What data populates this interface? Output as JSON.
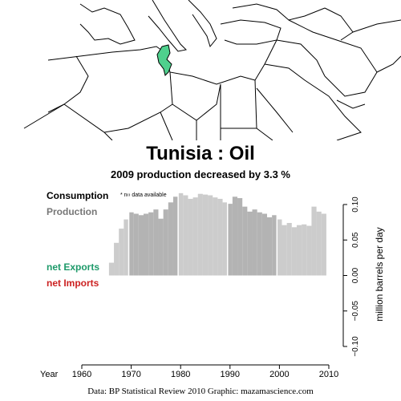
{
  "header": {
    "title": "Tunisia :  Oil",
    "subtitle": "2009 production decreased by 3.3 %"
  },
  "legend": {
    "consumption": "Consumption",
    "production": "Production",
    "net_exports": "net Exports",
    "net_imports": "net Imports",
    "no_data_note": "* no data available"
  },
  "colors": {
    "consumption": "#000000",
    "production": "#777777",
    "net_exports": "#1e9a6a",
    "net_imports": "#cc2222",
    "bar_light": "#cccccc",
    "bar_dark": "#b3b3b3",
    "highlight_country": "#4fd08d"
  },
  "footer": {
    "source": "Data: BP Statistical Review 2010    Graphic: mazamascience.com"
  },
  "map": {
    "highlight_country": "Tunisia"
  },
  "chart_data": {
    "type": "bar",
    "title": "Tunisia :  Oil",
    "subtitle": "2009 production decreased by 3.3 %",
    "xlabel": "Year",
    "ylabel": "million barrels per day",
    "xlim": [
      1960,
      2010
    ],
    "ylim": [
      -0.1,
      0.1
    ],
    "x_ticks": [
      1960,
      1970,
      1980,
      1990,
      2000,
      2010
    ],
    "y_ticks": [
      -0.1,
      -0.05,
      0.0,
      0.05,
      0.1
    ],
    "y_tick_labels": [
      "−0.10",
      "−0.05",
      "0.00",
      "0.05",
      "0.10"
    ],
    "consumption_available": false,
    "series": [
      {
        "name": "Production",
        "x": [
          1966,
          1967,
          1968,
          1969,
          1970,
          1971,
          1972,
          1973,
          1974,
          1975,
          1976,
          1977,
          1978,
          1979,
          1980,
          1981,
          1982,
          1983,
          1984,
          1985,
          1986,
          1987,
          1988,
          1989,
          1990,
          1991,
          1992,
          1993,
          1994,
          1995,
          1996,
          1997,
          1998,
          1999,
          2000,
          2001,
          2002,
          2003,
          2004,
          2005,
          2006,
          2007,
          2008,
          2009
        ],
        "values": [
          0.018,
          0.046,
          0.066,
          0.079,
          0.089,
          0.087,
          0.085,
          0.087,
          0.089,
          0.093,
          0.08,
          0.093,
          0.103,
          0.111,
          0.116,
          0.113,
          0.108,
          0.11,
          0.115,
          0.114,
          0.113,
          0.11,
          0.108,
          0.103,
          0.101,
          0.111,
          0.109,
          0.097,
          0.09,
          0.093,
          0.089,
          0.087,
          0.082,
          0.085,
          0.079,
          0.071,
          0.074,
          0.068,
          0.071,
          0.072,
          0.07,
          0.097,
          0.09,
          0.087
        ]
      }
    ]
  }
}
